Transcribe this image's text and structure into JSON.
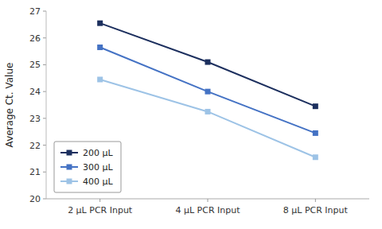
{
  "chart_data": {
    "type": "line",
    "categories": [
      "2 μL PCR Input",
      "4 μL PCR Input",
      "8 μL PCR Input"
    ],
    "series": [
      {
        "name": "200 μL",
        "color": "#1c2f5e",
        "marker": "square",
        "values": [
          26.55,
          25.1,
          23.45
        ]
      },
      {
        "name": "300 μL",
        "color": "#4472c4",
        "marker": "square",
        "values": [
          25.65,
          24.0,
          22.45
        ]
      },
      {
        "name": "400 μL",
        "color": "#9dc3e6",
        "marker": "square",
        "values": [
          24.45,
          23.25,
          21.55
        ]
      }
    ],
    "ylabel": "Average Ct. Value",
    "ylim": [
      20,
      27
    ],
    "yticks": [
      20,
      21,
      22,
      23,
      24,
      25,
      26,
      27
    ],
    "grid": false,
    "legend": "lower left"
  }
}
